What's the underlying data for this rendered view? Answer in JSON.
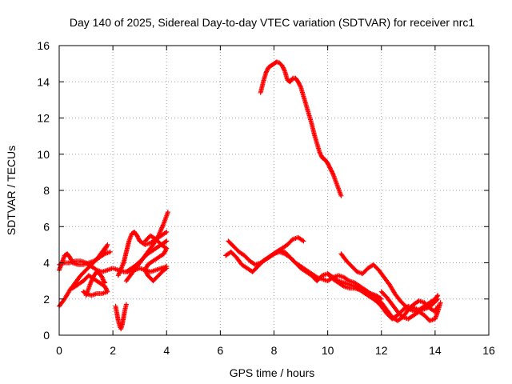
{
  "chart_data": {
    "type": "scatter",
    "title": "Day 140 of 2025, Sidereal Day-to-day VTEC variation (SDTVAR) for receiver nrc1",
    "xlabel": "GPS time / hours",
    "ylabel": "SDTVAR / TECUs",
    "xlim": [
      0,
      16
    ],
    "ylim": [
      0,
      16
    ],
    "x_ticks": [
      0,
      2,
      4,
      6,
      8,
      10,
      12,
      14,
      16
    ],
    "y_ticks": [
      0,
      2,
      4,
      6,
      8,
      10,
      12,
      14,
      16
    ],
    "grid": true,
    "marker": "+",
    "color": "#ff0000",
    "series": [
      {
        "name": "s1",
        "points": [
          [
            0.0,
            1.6
          ],
          [
            0.2,
            2.0
          ],
          [
            0.4,
            2.5
          ],
          [
            0.6,
            2.9
          ],
          [
            0.8,
            3.3
          ],
          [
            1.0,
            3.6
          ],
          [
            1.2,
            3.9
          ],
          [
            1.4,
            4.2
          ],
          [
            1.6,
            4.6
          ],
          [
            1.8,
            5.0
          ],
          [
            1.7,
            4.7
          ],
          [
            1.5,
            4.3
          ]
        ]
      },
      {
        "name": "s2",
        "points": [
          [
            0.0,
            3.6
          ],
          [
            0.1,
            4.0
          ],
          [
            0.2,
            4.4
          ],
          [
            0.3,
            4.5
          ],
          [
            0.4,
            4.3
          ],
          [
            0.5,
            4.0
          ],
          [
            0.7,
            3.9
          ],
          [
            0.9,
            3.9
          ],
          [
            1.1,
            4.0
          ],
          [
            1.3,
            4.1
          ],
          [
            1.5,
            4.3
          ],
          [
            1.7,
            4.5
          ],
          [
            1.9,
            4.6
          ]
        ]
      },
      {
        "name": "s3",
        "points": [
          [
            0.0,
            3.9
          ],
          [
            0.2,
            4.0
          ],
          [
            0.4,
            4.0
          ],
          [
            0.6,
            4.1
          ],
          [
            0.8,
            4.1
          ],
          [
            1.0,
            4.0
          ],
          [
            1.2,
            3.8
          ],
          [
            1.4,
            3.6
          ],
          [
            1.6,
            3.5
          ],
          [
            1.8,
            3.6
          ],
          [
            2.0,
            3.7
          ],
          [
            2.2,
            3.6
          ],
          [
            2.4,
            3.5
          ],
          [
            2.6,
            3.5
          ],
          [
            2.8,
            3.6
          ],
          [
            3.0,
            3.7
          ],
          [
            3.2,
            3.6
          ],
          [
            3.4,
            3.5
          ],
          [
            3.6,
            3.6
          ],
          [
            3.8,
            3.7
          ],
          [
            4.0,
            3.8
          ]
        ]
      },
      {
        "name": "s4",
        "points": [
          [
            0.5,
            2.6
          ],
          [
            0.7,
            2.8
          ],
          [
            0.9,
            3.0
          ],
          [
            1.1,
            3.3
          ],
          [
            1.3,
            3.1
          ],
          [
            1.5,
            2.9
          ],
          [
            1.7,
            2.7
          ],
          [
            1.8,
            2.4
          ],
          [
            1.6,
            2.3
          ],
          [
            1.4,
            2.3
          ],
          [
            1.2,
            2.2
          ],
          [
            1.0,
            2.3
          ],
          [
            0.9,
            2.4
          ]
        ]
      },
      {
        "name": "s5",
        "points": [
          [
            1.0,
            2.2
          ],
          [
            1.1,
            2.6
          ],
          [
            1.2,
            3.0
          ],
          [
            1.3,
            3.3
          ],
          [
            1.4,
            3.5
          ],
          [
            1.5,
            3.4
          ],
          [
            1.6,
            3.2
          ],
          [
            1.65,
            3.0
          ],
          [
            1.7,
            2.9
          ]
        ]
      },
      {
        "name": "s6",
        "points": [
          [
            2.1,
            1.6
          ],
          [
            2.15,
            1.2
          ],
          [
            2.2,
            0.8
          ],
          [
            2.25,
            0.5
          ],
          [
            2.3,
            0.35
          ],
          [
            2.35,
            0.6
          ],
          [
            2.4,
            1.0
          ],
          [
            2.45,
            1.4
          ],
          [
            2.5,
            1.7
          ]
        ]
      },
      {
        "name": "s7",
        "points": [
          [
            2.2,
            3.3
          ],
          [
            2.4,
            4.0
          ],
          [
            2.5,
            4.6
          ],
          [
            2.6,
            5.2
          ],
          [
            2.7,
            5.6
          ],
          [
            2.8,
            5.7
          ],
          [
            2.9,
            5.5
          ],
          [
            3.0,
            5.2
          ],
          [
            3.2,
            5.0
          ],
          [
            3.4,
            5.1
          ],
          [
            3.6,
            5.3
          ],
          [
            3.8,
            5.5
          ],
          [
            4.0,
            5.7
          ]
        ]
      },
      {
        "name": "s8",
        "points": [
          [
            2.5,
            3.0
          ],
          [
            2.7,
            3.4
          ],
          [
            2.9,
            3.8
          ],
          [
            3.1,
            4.2
          ],
          [
            3.3,
            4.6
          ],
          [
            3.5,
            5.0
          ],
          [
            3.7,
            5.5
          ],
          [
            3.9,
            6.2
          ],
          [
            4.05,
            6.8
          ]
        ]
      },
      {
        "name": "s9",
        "points": [
          [
            3.2,
            5.2
          ],
          [
            3.4,
            5.5
          ],
          [
            3.6,
            5.3
          ],
          [
            3.8,
            5.0
          ],
          [
            4.0,
            4.8
          ],
          [
            3.9,
            4.5
          ],
          [
            3.7,
            4.3
          ],
          [
            3.5,
            4.1
          ],
          [
            3.3,
            3.9
          ],
          [
            3.2,
            3.6
          ],
          [
            3.3,
            3.3
          ],
          [
            3.5,
            3.0
          ],
          [
            3.7,
            3.3
          ],
          [
            3.9,
            3.6
          ],
          [
            4.0,
            3.7
          ]
        ]
      },
      {
        "name": "s10",
        "points": [
          [
            2.5,
            3.5
          ],
          [
            2.8,
            3.8
          ],
          [
            3.1,
            4.2
          ],
          [
            3.3,
            4.5
          ],
          [
            3.5,
            4.7
          ],
          [
            3.7,
            4.9
          ],
          [
            3.9,
            5.1
          ],
          [
            4.0,
            5.2
          ]
        ]
      },
      {
        "name": "s11",
        "points": [
          [
            6.3,
            5.2
          ],
          [
            6.5,
            4.9
          ],
          [
            6.7,
            4.6
          ],
          [
            6.9,
            4.4
          ],
          [
            7.1,
            4.1
          ],
          [
            7.3,
            3.9
          ],
          [
            7.5,
            4.0
          ],
          [
            7.7,
            4.2
          ],
          [
            7.9,
            4.4
          ],
          [
            8.1,
            4.6
          ],
          [
            8.3,
            4.8
          ],
          [
            8.5,
            5.0
          ],
          [
            8.7,
            5.3
          ],
          [
            8.9,
            5.4
          ],
          [
            9.1,
            5.2
          ]
        ]
      },
      {
        "name": "s12",
        "points": [
          [
            6.2,
            4.4
          ],
          [
            6.4,
            4.6
          ],
          [
            6.6,
            4.3
          ],
          [
            6.8,
            3.9
          ],
          [
            7.0,
            3.7
          ],
          [
            7.2,
            3.5
          ],
          [
            7.4,
            3.8
          ],
          [
            7.6,
            4.1
          ],
          [
            7.8,
            4.3
          ],
          [
            8.0,
            4.5
          ],
          [
            8.2,
            4.6
          ],
          [
            8.4,
            4.5
          ],
          [
            8.6,
            4.3
          ],
          [
            8.8,
            4.0
          ],
          [
            9.0,
            3.8
          ],
          [
            9.2,
            3.6
          ],
          [
            9.4,
            3.4
          ],
          [
            9.6,
            3.2
          ],
          [
            9.8,
            3.1
          ],
          [
            10.0,
            3.0
          ],
          [
            10.2,
            3.2
          ],
          [
            10.4,
            3.3
          ],
          [
            10.6,
            3.2
          ],
          [
            10.8,
            3.0
          ],
          [
            11.0,
            2.9
          ],
          [
            11.2,
            2.7
          ],
          [
            11.4,
            2.5
          ],
          [
            11.6,
            2.3
          ],
          [
            11.8,
            2.2
          ],
          [
            12.0,
            2.0
          ]
        ]
      },
      {
        "name": "s13",
        "points": [
          [
            7.8,
            4.3
          ],
          [
            8.0,
            4.5
          ],
          [
            8.2,
            4.7
          ],
          [
            8.4,
            4.6
          ],
          [
            8.6,
            4.3
          ],
          [
            8.8,
            4.0
          ],
          [
            9.0,
            3.7
          ],
          [
            9.2,
            3.5
          ],
          [
            9.4,
            3.3
          ],
          [
            9.6,
            3.0
          ],
          [
            9.8,
            3.3
          ],
          [
            10.0,
            3.4
          ],
          [
            10.2,
            3.2
          ],
          [
            10.4,
            3.0
          ],
          [
            10.6,
            2.9
          ],
          [
            10.8,
            2.8
          ],
          [
            11.0,
            2.7
          ],
          [
            11.2,
            2.5
          ],
          [
            11.4,
            2.3
          ],
          [
            11.6,
            2.1
          ],
          [
            11.8,
            1.9
          ],
          [
            12.0,
            1.6
          ],
          [
            12.2,
            1.2
          ],
          [
            12.4,
            0.9
          ],
          [
            12.6,
            1.1
          ],
          [
            12.8,
            1.4
          ],
          [
            13.0,
            1.6
          ],
          [
            13.2,
            1.5
          ],
          [
            13.4,
            1.4
          ],
          [
            13.6,
            1.6
          ],
          [
            13.8,
            1.8
          ],
          [
            14.0,
            2.0
          ],
          [
            14.1,
            2.2
          ]
        ]
      },
      {
        "name": "s14",
        "points": [
          [
            10.5,
            4.5
          ],
          [
            10.7,
            4.1
          ],
          [
            10.9,
            3.8
          ],
          [
            11.1,
            3.5
          ],
          [
            11.3,
            3.4
          ],
          [
            11.5,
            3.7
          ],
          [
            11.7,
            3.9
          ],
          [
            11.9,
            3.6
          ],
          [
            12.1,
            3.2
          ],
          [
            12.3,
            2.8
          ],
          [
            12.5,
            2.3
          ],
          [
            12.7,
            1.9
          ],
          [
            12.9,
            1.6
          ],
          [
            13.1,
            1.4
          ],
          [
            13.3,
            1.3
          ],
          [
            13.5,
            1.4
          ],
          [
            13.7,
            1.5
          ],
          [
            13.9,
            1.7
          ],
          [
            14.1,
            2.0
          ]
        ]
      },
      {
        "name": "s15",
        "points": [
          [
            10.0,
            3.4
          ],
          [
            10.2,
            3.1
          ],
          [
            10.4,
            2.9
          ],
          [
            10.6,
            2.7
          ],
          [
            10.8,
            2.6
          ],
          [
            11.0,
            2.6
          ],
          [
            11.2,
            2.5
          ],
          [
            11.4,
            2.4
          ],
          [
            11.6,
            2.3
          ],
          [
            11.8,
            2.1
          ],
          [
            12.0,
            1.8
          ],
          [
            12.2,
            1.4
          ],
          [
            12.4,
            1.0
          ],
          [
            12.6,
            0.8
          ],
          [
            12.8,
            1.0
          ],
          [
            13.0,
            1.4
          ],
          [
            13.2,
            1.7
          ],
          [
            13.4,
            1.9
          ],
          [
            13.6,
            1.8
          ],
          [
            13.8,
            1.5
          ],
          [
            14.0,
            1.3
          ],
          [
            14.1,
            1.6
          ]
        ]
      },
      {
        "name": "s16",
        "points": [
          [
            12.0,
            2.4
          ],
          [
            12.2,
            2.1
          ],
          [
            12.4,
            1.7
          ],
          [
            12.6,
            1.3
          ],
          [
            12.8,
            1.0
          ],
          [
            13.0,
            0.9
          ],
          [
            13.2,
            1.1
          ],
          [
            13.4,
            1.3
          ],
          [
            13.6,
            1.1
          ],
          [
            13.8,
            0.8
          ],
          [
            14.0,
            0.9
          ],
          [
            14.1,
            1.3
          ],
          [
            14.2,
            1.8
          ]
        ]
      },
      {
        "name": "s17",
        "points": [
          [
            7.5,
            13.4
          ],
          [
            7.6,
            14.0
          ],
          [
            7.7,
            14.5
          ],
          [
            7.8,
            14.8
          ],
          [
            7.9,
            14.9
          ],
          [
            8.0,
            15.0
          ],
          [
            8.1,
            15.1
          ],
          [
            8.2,
            15.05
          ],
          [
            8.3,
            14.9
          ],
          [
            8.4,
            14.6
          ],
          [
            8.5,
            14.1
          ],
          [
            8.6,
            14.0
          ],
          [
            8.7,
            14.2
          ],
          [
            8.8,
            14.2
          ],
          [
            8.9,
            14.0
          ],
          [
            9.0,
            13.7
          ],
          [
            9.1,
            13.2
          ],
          [
            9.2,
            12.7
          ],
          [
            9.3,
            12.2
          ],
          [
            9.4,
            11.7
          ],
          [
            9.5,
            11.1
          ],
          [
            9.6,
            10.6
          ],
          [
            9.7,
            10.1
          ],
          [
            9.8,
            9.8
          ],
          [
            9.9,
            9.7
          ],
          [
            10.0,
            9.5
          ],
          [
            10.1,
            9.2
          ],
          [
            10.2,
            8.9
          ],
          [
            10.3,
            8.5
          ],
          [
            10.4,
            8.1
          ],
          [
            10.5,
            7.7
          ]
        ]
      }
    ]
  }
}
